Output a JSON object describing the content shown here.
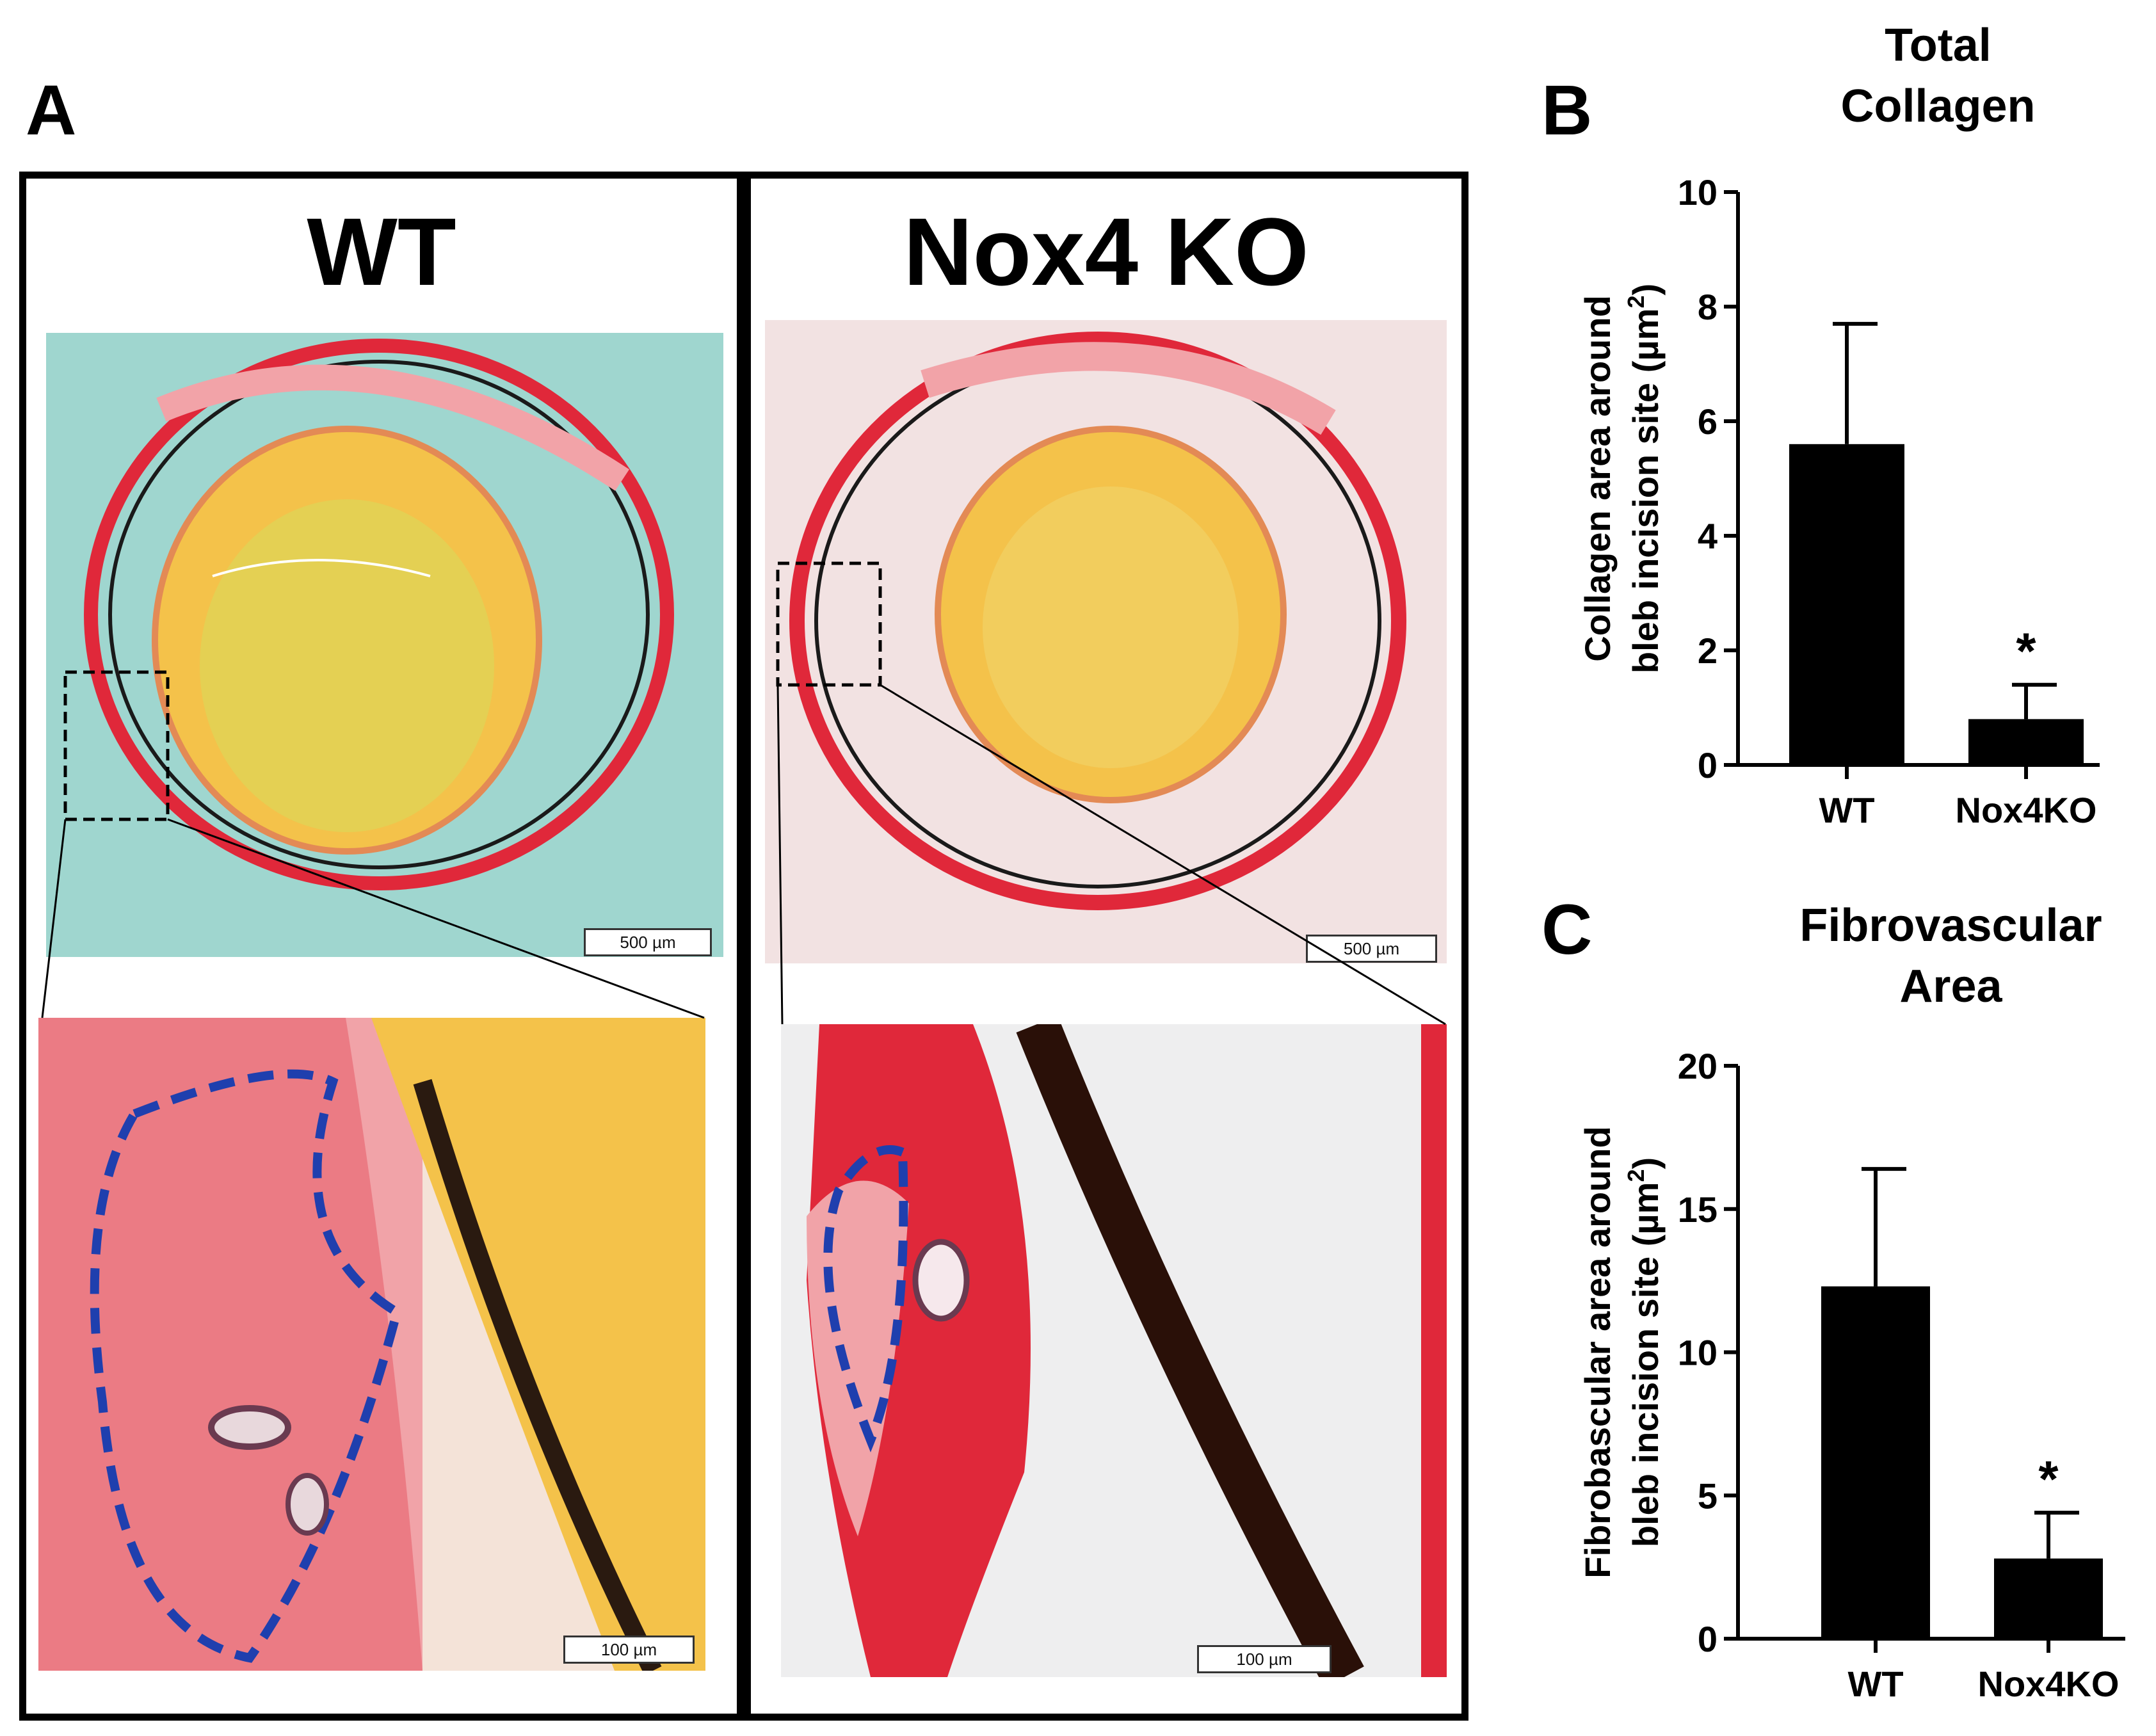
{
  "panel_a": {
    "letter": "A",
    "wt_title": "WT",
    "ko_title": "Nox4 KO",
    "scale_overview_wt": "500 µm",
    "scale_overview_ko": "500 µm",
    "scale_zoom_wt": "100 µm",
    "scale_zoom_ko": "100 µm"
  },
  "panel_b": {
    "letter": "B"
  },
  "panel_c": {
    "letter": "C"
  },
  "colors": {
    "bar": "#000000",
    "wt_background": "#9fd6cf",
    "ko_background": "#f2e2e2",
    "lens": "#f4c24a",
    "tissue_red": "#e0283a",
    "outline_blue": "#1f3fae"
  },
  "chart_data": [
    {
      "id": "total-collagen",
      "type": "bar",
      "title_lines": [
        "Total",
        "Collagen"
      ],
      "categories": [
        "WT",
        "Nox4KO"
      ],
      "values": [
        5.6,
        0.8
      ],
      "errors": [
        2.1,
        0.6
      ],
      "significance": [
        "",
        "*"
      ],
      "ylabel_lines": [
        "Collagen area around",
        "bleb incision site (µm",
        ")"
      ],
      "ylabel_sup": "2",
      "ylim": [
        0,
        10
      ],
      "yticks": [
        0,
        2,
        4,
        6,
        8,
        10
      ]
    },
    {
      "id": "fibrovascular-area",
      "type": "bar",
      "title_lines": [
        "Fibrovascular",
        "Area"
      ],
      "categories": [
        "WT",
        "Nox4KO"
      ],
      "values": [
        12.3,
        2.8
      ],
      "errors": [
        4.1,
        1.6
      ],
      "significance": [
        "",
        "*"
      ],
      "ylabel_lines": [
        "Fibrobascular area around",
        "bleb incision site (µm",
        ")"
      ],
      "ylabel_sup": "2",
      "ylim": [
        0,
        20
      ],
      "yticks": [
        0,
        5,
        10,
        15,
        20
      ]
    }
  ]
}
